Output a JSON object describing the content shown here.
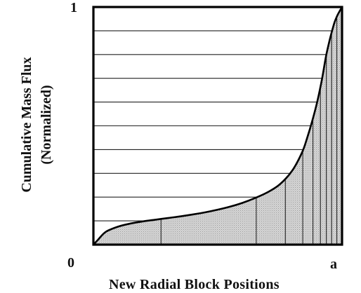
{
  "chart_data": {
    "type": "area",
    "title": "",
    "xlabel": "New Radial Block Positions",
    "ylabel": [
      "Cumulative Mass Flux",
      "(Normalized)"
    ],
    "x_ticks": [
      {
        "value": 0,
        "label": "0"
      },
      {
        "value": 1,
        "label": "a"
      }
    ],
    "y_ticks": [
      {
        "value": 1,
        "label": "1"
      }
    ],
    "xlim": [
      0,
      1
    ],
    "ylim": [
      0,
      1
    ],
    "grid": false,
    "series": [
      {
        "curve": {
          "x": [
            0,
            0.018,
            0.05,
            0.1,
            0.15,
            0.2,
            0.25,
            0.3,
            0.35,
            0.4,
            0.45,
            0.5,
            0.55,
            0.6,
            0.65,
            0.7,
            0.75,
            0.8,
            0.84,
            0.86,
            0.88,
            0.9,
            0.92,
            0.935,
            0.95,
            0.96,
            0.97,
            0.98,
            0.99,
            1.0
          ],
          "y": [
            0,
            0.02,
            0.054,
            0.076,
            0.089,
            0.098,
            0.105,
            0.112,
            0.119,
            0.127,
            0.136,
            0.147,
            0.16,
            0.176,
            0.196,
            0.22,
            0.254,
            0.312,
            0.39,
            0.45,
            0.52,
            0.6,
            0.7,
            0.79,
            0.86,
            0.9,
            0.936,
            0.962,
            0.982,
            1.0
          ]
        }
      }
    ],
    "annotations": {
      "equal_flux_levels": [
        0.1,
        0.2,
        0.3,
        0.4,
        0.5,
        0.6,
        0.7,
        0.8,
        0.9
      ],
      "block_positions_x": [
        0.272,
        0.655,
        0.772,
        0.842,
        0.883,
        0.913,
        0.937,
        0.958,
        0.979
      ]
    },
    "style": {
      "fill": "#cfcfcf",
      "curve_stroke": "#000000",
      "frame_stroke": "#000000",
      "line_stroke": "#222222"
    }
  }
}
